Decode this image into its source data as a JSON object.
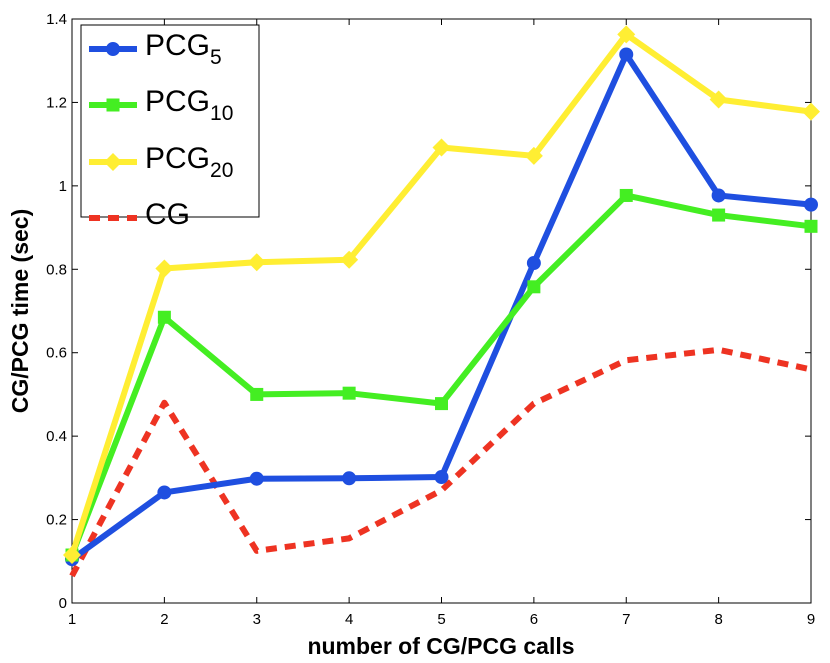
{
  "chart_data": {
    "type": "line",
    "title": "",
    "xlabel": "number of CG/PCG calls",
    "ylabel": "CG/PCG time (sec)",
    "x": [
      1,
      2,
      3,
      4,
      5,
      6,
      7,
      8,
      9
    ],
    "xlim": [
      1,
      9
    ],
    "ylim": [
      0,
      1.4
    ],
    "xticks": [
      "1",
      "2",
      "3",
      "4",
      "5",
      "6",
      "7",
      "8",
      "9"
    ],
    "yticks": [
      {
        "value": 0,
        "label": "0"
      },
      {
        "value": 0.2,
        "label": "0.2"
      },
      {
        "value": 0.4,
        "label": "0.4"
      },
      {
        "value": 0.6,
        "label": "0.6"
      },
      {
        "value": 0.8,
        "label": "0.8"
      },
      {
        "value": 1.0,
        "label": "1"
      },
      {
        "value": 1.2,
        "label": "1.2"
      },
      {
        "value": 1.4,
        "label": "1.4"
      }
    ],
    "grid": false,
    "legend_position": "top-left",
    "series": [
      {
        "name": "PCG",
        "subscript": "5",
        "key": "pcg5",
        "color": "#1f4fe0",
        "marker": "circle",
        "dash": "solid",
        "values": [
          0.105,
          0.265,
          0.298,
          0.299,
          0.302,
          0.815,
          1.315,
          0.977,
          0.955
        ]
      },
      {
        "name": "PCG",
        "subscript": "10",
        "key": "pcg10",
        "color": "#44ee22",
        "marker": "square",
        "dash": "solid",
        "values": [
          0.115,
          0.685,
          0.5,
          0.503,
          0.478,
          0.758,
          0.977,
          0.93,
          0.903
        ]
      },
      {
        "name": "PCG",
        "subscript": "20",
        "key": "pcg20",
        "color": "#ffee33",
        "marker": "diamond",
        "dash": "solid",
        "values": [
          0.115,
          0.802,
          0.817,
          0.823,
          1.092,
          1.072,
          1.363,
          1.207,
          1.178
        ]
      },
      {
        "name": "CG",
        "subscript": "",
        "key": "cg",
        "color": "#ee3322",
        "marker": "none",
        "dash": "dashed",
        "values": [
          0.065,
          0.48,
          0.125,
          0.155,
          0.27,
          0.478,
          0.582,
          0.607,
          0.56
        ]
      }
    ]
  }
}
